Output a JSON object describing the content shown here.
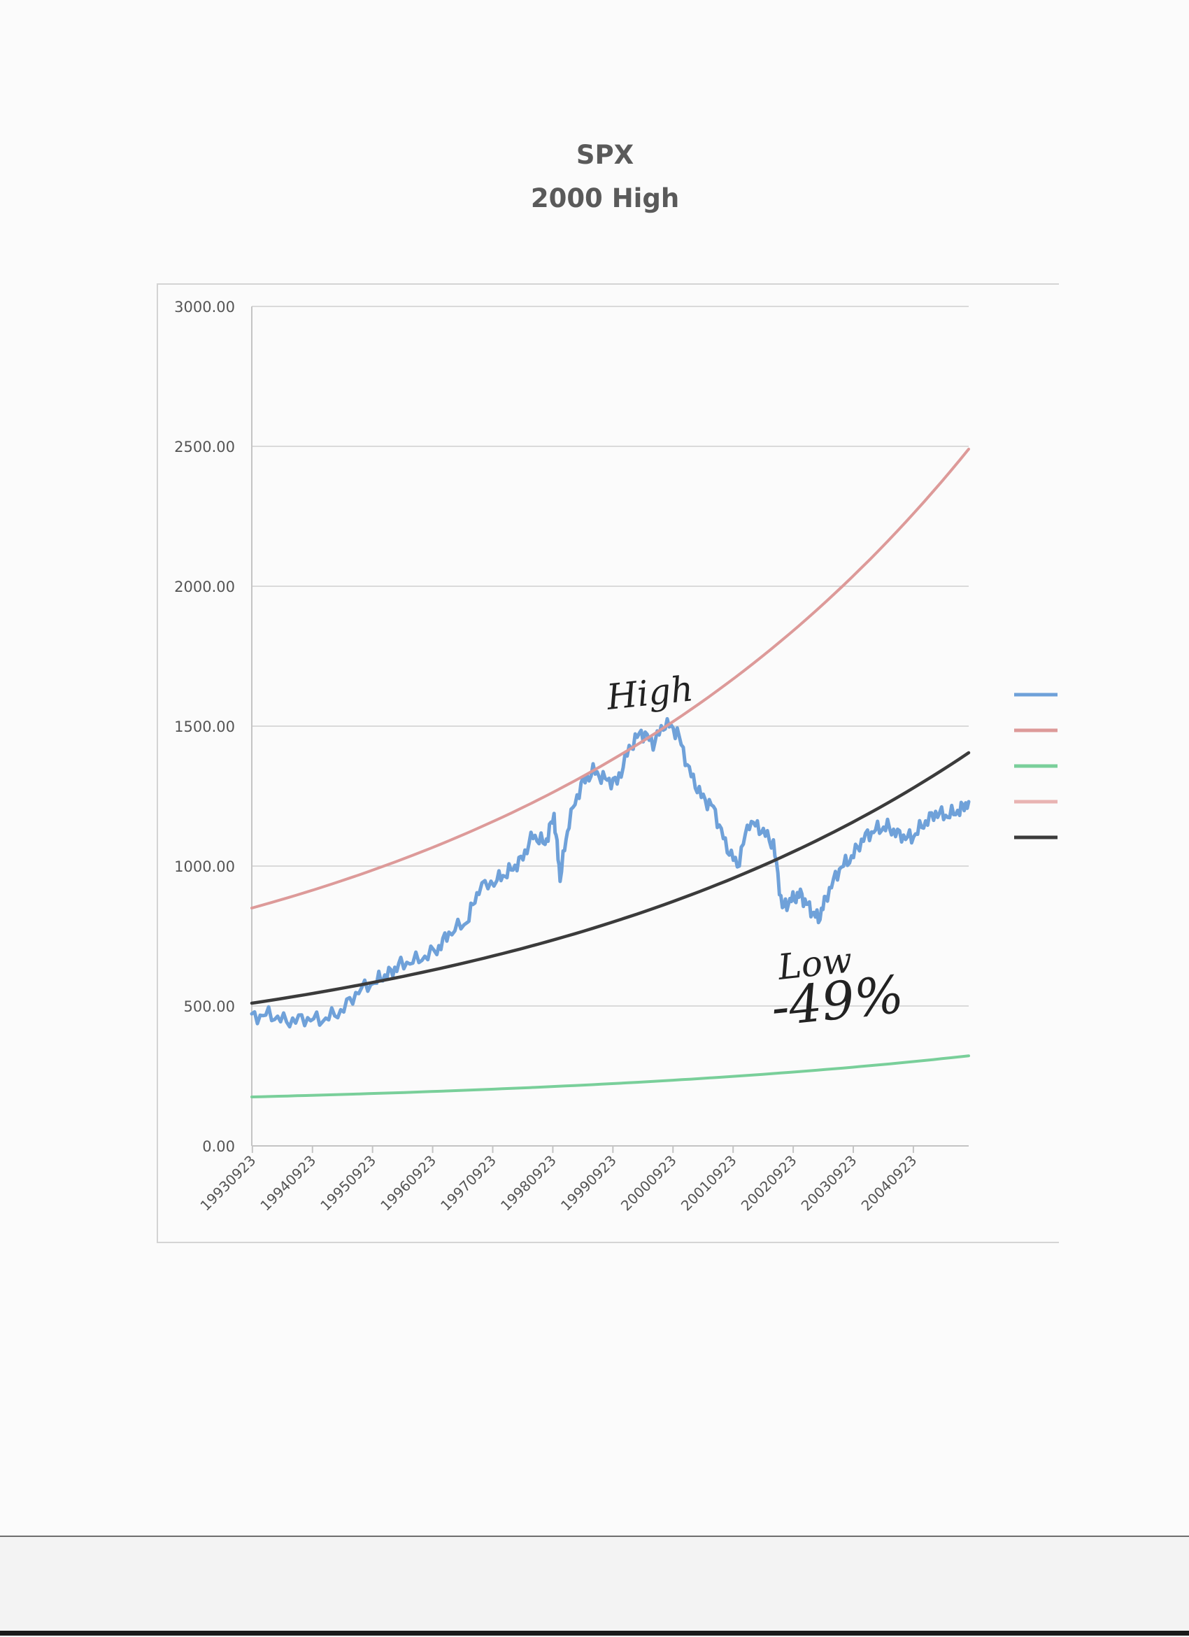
{
  "chart_data": {
    "type": "line",
    "title": "SPX",
    "subtitle": "2000 High",
    "xlabel": "",
    "ylabel": "",
    "ylim": [
      0,
      3000
    ],
    "ytick_labels": [
      "0.00",
      "500.00",
      "1000.00",
      "1500.00",
      "2000.00",
      "2500.00",
      "3000.00"
    ],
    "yticks": [
      0,
      500,
      1000,
      1500,
      2000,
      2500,
      3000
    ],
    "xtick_labels": [
      "19930923",
      "19940923",
      "19950923",
      "19960923",
      "19970923",
      "19980923",
      "19990923",
      "20000923",
      "20010923",
      "20020923",
      "20030923",
      "20040923"
    ],
    "x_range_years": [
      1993.72,
      2005.65
    ],
    "grid": "horizontal",
    "legend_position": "right",
    "series": [
      {
        "key": "spx",
        "color": "#6fa1d9",
        "points": [
          [
            1993.72,
            460
          ],
          [
            1994.0,
            470
          ],
          [
            1994.3,
            445
          ],
          [
            1994.6,
            455
          ],
          [
            1994.9,
            450
          ],
          [
            1995.2,
            480
          ],
          [
            1995.5,
            555
          ],
          [
            1995.8,
            590
          ],
          [
            1996.0,
            615
          ],
          [
            1996.2,
            650
          ],
          [
            1996.5,
            665
          ],
          [
            1996.8,
            700
          ],
          [
            1997.0,
            760
          ],
          [
            1997.3,
            800
          ],
          [
            1997.5,
            920
          ],
          [
            1997.8,
            950
          ],
          [
            1998.0,
            980
          ],
          [
            1998.2,
            1020
          ],
          [
            1998.4,
            1110
          ],
          [
            1998.6,
            1080
          ],
          [
            1998.75,
            1180
          ],
          [
            1998.85,
            960
          ],
          [
            1999.0,
            1160
          ],
          [
            1999.2,
            1290
          ],
          [
            1999.4,
            1340
          ],
          [
            1999.6,
            1310
          ],
          [
            1999.8,
            1300
          ],
          [
            2000.0,
            1420
          ],
          [
            2000.2,
            1480
          ],
          [
            2000.4,
            1440
          ],
          [
            2000.6,
            1510
          ],
          [
            2000.8,
            1480
          ],
          [
            2001.0,
            1340
          ],
          [
            2001.2,
            1250
          ],
          [
            2001.4,
            1210
          ],
          [
            2001.6,
            1080
          ],
          [
            2001.8,
            1000
          ],
          [
            2002.0,
            1160
          ],
          [
            2002.2,
            1130
          ],
          [
            2002.4,
            1080
          ],
          [
            2002.55,
            850
          ],
          [
            2002.7,
            880
          ],
          [
            2002.85,
            900
          ],
          [
            2003.0,
            850
          ],
          [
            2003.15,
            810
          ],
          [
            2003.3,
            900
          ],
          [
            2003.5,
            990
          ],
          [
            2003.7,
            1030
          ],
          [
            2003.9,
            1100
          ],
          [
            2004.1,
            1130
          ],
          [
            2004.3,
            1140
          ],
          [
            2004.5,
            1110
          ],
          [
            2004.7,
            1100
          ],
          [
            2004.9,
            1150
          ],
          [
            2005.1,
            1190
          ],
          [
            2005.3,
            1180
          ],
          [
            2005.5,
            1200
          ],
          [
            2005.65,
            1230
          ]
        ]
      },
      {
        "key": "upper",
        "color": "#dd9a99",
        "start": 850,
        "end": 2490,
        "curvature": 5.0
      },
      {
        "key": "lower",
        "color": "#79cf9a",
        "start": 175,
        "end": 322,
        "curvature": 5.0
      },
      {
        "key": "mid",
        "color": "#3b3b3b",
        "start": 510,
        "end": 1405,
        "curvature": 5.0
      }
    ],
    "legend": [
      {
        "color": "#6fa1d9"
      },
      {
        "color": "#dd9a99"
      },
      {
        "color": "#79cf9a"
      },
      {
        "color": "#e8b3b2"
      },
      {
        "color": "#3b3b3b"
      }
    ],
    "annotations": [
      {
        "text": "High",
        "x": 1999.65,
        "y": 1560,
        "color": "#222222",
        "handwritten": true
      },
      {
        "text": "Low",
        "x": 2002.5,
        "y": 595,
        "color": "#222222",
        "handwritten": true
      },
      {
        "text": "-49%",
        "x": 2002.4,
        "y": 430,
        "color": "#222222",
        "handwritten": true
      }
    ]
  }
}
